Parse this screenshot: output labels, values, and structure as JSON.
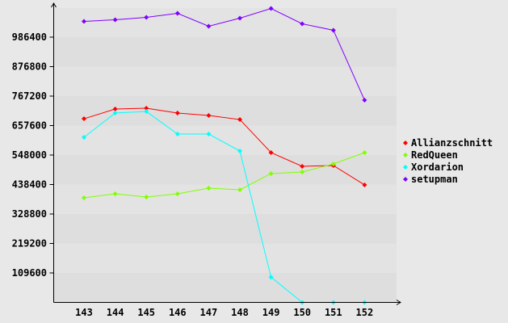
{
  "chart_data": {
    "type": "line",
    "title": "",
    "xlabel": "",
    "ylabel": "",
    "x": [
      143,
      144,
      145,
      146,
      147,
      148,
      149,
      150,
      151,
      152
    ],
    "yticks": [
      109600,
      219200,
      328800,
      438400,
      548000,
      657600,
      767200,
      876800,
      986400
    ],
    "ylim": [
      0,
      1096000
    ],
    "grid": "horizontal bands",
    "legend": "right",
    "series": [
      {
        "name": "Allianzschnitt",
        "color": "#ff0000",
        "values": [
          683000,
          719000,
          722000,
          704000,
          695000,
          680000,
          557000,
          506000,
          509000,
          437000
        ]
      },
      {
        "name": "RedQueen",
        "color": "#80ff00",
        "values": [
          389000,
          404000,
          392000,
          404000,
          425000,
          419000,
          479000,
          485000,
          515000,
          557000
        ]
      },
      {
        "name": "Xordarion",
        "color": "#00ffff",
        "values": [
          614000,
          704000,
          710000,
          626000,
          626000,
          563000,
          94000,
          0,
          0,
          0
        ]
      },
      {
        "name": "setupman",
        "color": "#8000ff",
        "values": [
          1045000,
          1051000,
          1060000,
          1075000,
          1027000,
          1057000,
          1093000,
          1036000,
          1012000,
          752000
        ]
      }
    ]
  }
}
